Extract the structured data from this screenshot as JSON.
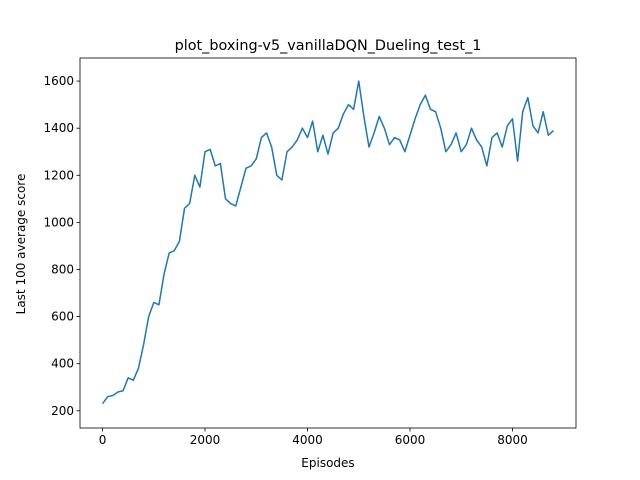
{
  "chart_data": {
    "type": "line",
    "title": "plot_boxing-v5_vanillaDQN_Dueling_test_1",
    "xlabel": "Episodes",
    "ylabel": "Last 100 average score",
    "x": [
      0,
      100,
      200,
      300,
      400,
      500,
      600,
      700,
      800,
      900,
      1000,
      1100,
      1200,
      1300,
      1400,
      1500,
      1600,
      1700,
      1800,
      1900,
      2000,
      2100,
      2200,
      2300,
      2400,
      2500,
      2600,
      2700,
      2800,
      2900,
      3000,
      3100,
      3200,
      3300,
      3400,
      3500,
      3600,
      3700,
      3800,
      3900,
      4000,
      4100,
      4200,
      4300,
      4400,
      4500,
      4600,
      4700,
      4800,
      4900,
      5000,
      5100,
      5200,
      5300,
      5400,
      5500,
      5600,
      5700,
      5800,
      5900,
      6000,
      6100,
      6200,
      6300,
      6400,
      6500,
      6600,
      6700,
      6800,
      6900,
      7000,
      7100,
      7200,
      7300,
      7400,
      7500,
      7600,
      7700,
      7800,
      7900,
      8000,
      8100,
      8200,
      8300,
      8400,
      8500,
      8600,
      8700,
      8800
    ],
    "series": [
      {
        "color": "#1f77b4",
        "values": [
          230,
          260,
          265,
          280,
          285,
          340,
          330,
          380,
          480,
          600,
          660,
          650,
          780,
          870,
          880,
          920,
          1060,
          1080,
          1200,
          1150,
          1300,
          1310,
          1240,
          1250,
          1100,
          1080,
          1070,
          1150,
          1230,
          1240,
          1270,
          1360,
          1380,
          1320,
          1200,
          1180,
          1300,
          1320,
          1350,
          1400,
          1360,
          1430,
          1300,
          1370,
          1290,
          1380,
          1400,
          1460,
          1500,
          1480,
          1600,
          1450,
          1320,
          1380,
          1450,
          1400,
          1330,
          1360,
          1350,
          1300,
          1370,
          1440,
          1500,
          1540,
          1480,
          1470,
          1400,
          1300,
          1330,
          1380,
          1300,
          1330,
          1400,
          1350,
          1320,
          1240,
          1360,
          1380,
          1320,
          1410,
          1440,
          1260,
          1470,
          1530,
          1410,
          1380,
          1470,
          1370,
          1390
        ]
      }
    ],
    "xlim": [
      -440,
      9240
    ],
    "ylim": [
      127,
      1698
    ],
    "xticks": [
      0,
      2000,
      4000,
      6000,
      8000
    ],
    "yticks": [
      200,
      400,
      600,
      800,
      1000,
      1200,
      1400,
      1600
    ]
  }
}
